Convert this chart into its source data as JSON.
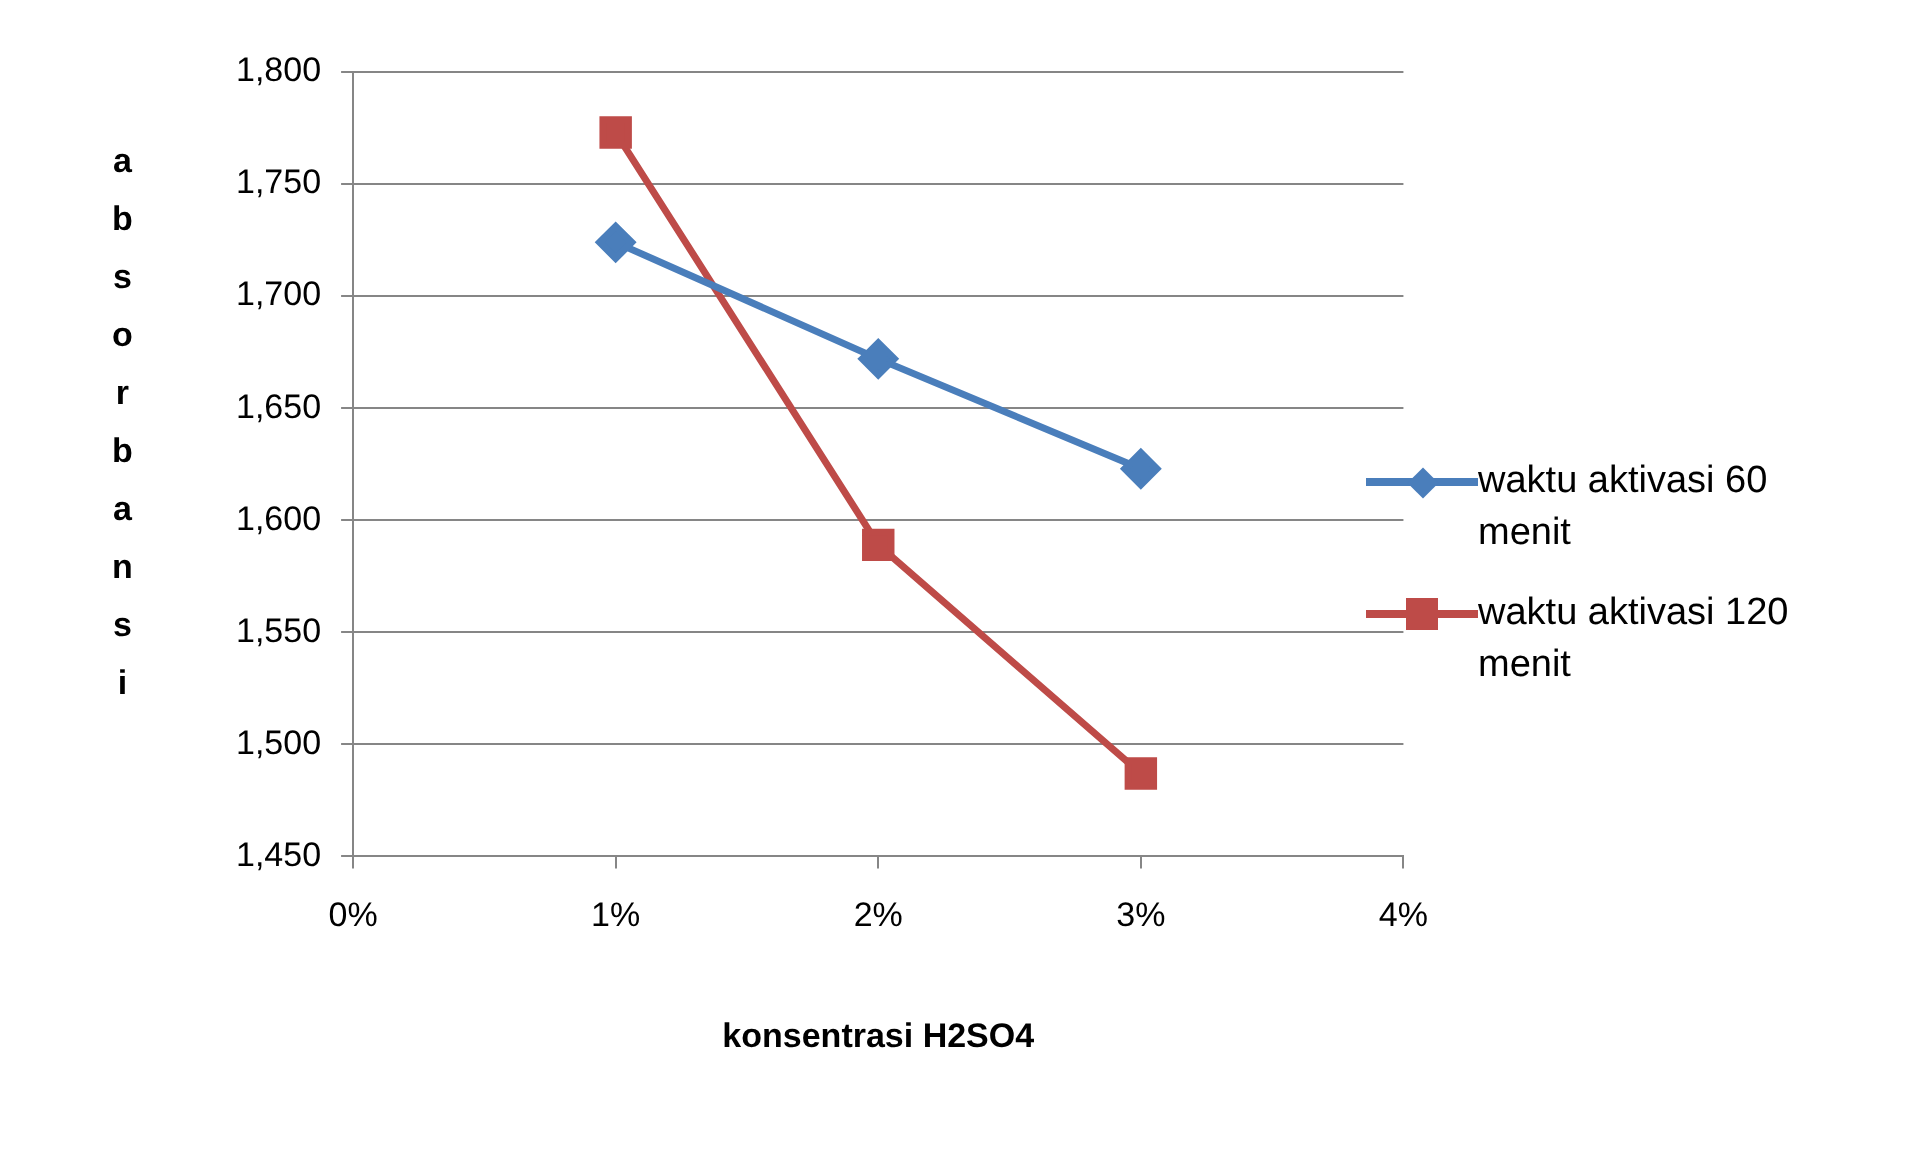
{
  "chart_data": {
    "type": "line",
    "xlabel": "konsentrasi H2SO4",
    "ylabel": "absorbansi",
    "x": [
      1,
      2,
      3
    ],
    "series": [
      {
        "name": "waktu aktivasi 60 menit",
        "color": "#4a7ebb",
        "marker": "diamond",
        "values": [
          1724,
          1672,
          1623
        ]
      },
      {
        "name": "waktu aktivasi 120 menit",
        "color": "#be4b48",
        "marker": "square",
        "values": [
          1773,
          1589,
          1487
        ]
      }
    ],
    "xlim": [
      0,
      4
    ],
    "xticks": [
      {
        "value": 0,
        "label": "0%"
      },
      {
        "value": 1,
        "label": "1%"
      },
      {
        "value": 2,
        "label": "2%"
      },
      {
        "value": 3,
        "label": "3%"
      },
      {
        "value": 4,
        "label": "4%"
      }
    ],
    "ylim": [
      1450,
      1800
    ],
    "yticks": [
      {
        "value": 1450,
        "label": "1,450"
      },
      {
        "value": 1500,
        "label": "1,500"
      },
      {
        "value": 1550,
        "label": "1,550"
      },
      {
        "value": 1600,
        "label": "1,600"
      },
      {
        "value": 1650,
        "label": "1,650"
      },
      {
        "value": 1700,
        "label": "1,700"
      },
      {
        "value": 1750,
        "label": "1,750"
      },
      {
        "value": 1800,
        "label": "1,800"
      }
    ],
    "grid": "y",
    "legend": "right"
  }
}
